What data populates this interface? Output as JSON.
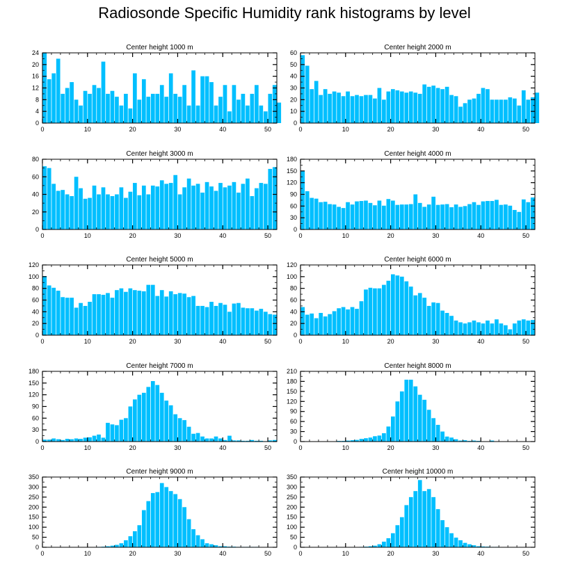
{
  "title": "Radiosonde Specific Humidity rank histograms by level",
  "bar_color": "#00BFFF",
  "chart_data": [
    {
      "type": "bar",
      "title": "Center height 1000 m",
      "xlim": [
        0,
        52
      ],
      "ylim": [
        0,
        24
      ],
      "xticks": [
        0,
        10,
        20,
        30,
        40,
        50
      ],
      "yticks": [
        0,
        4,
        8,
        12,
        16,
        20,
        24
      ],
      "values": [
        24,
        15,
        17,
        22,
        10,
        12,
        14,
        8,
        6,
        11,
        10,
        13,
        12,
        21,
        10,
        11,
        9,
        6,
        10,
        5,
        17,
        8,
        15,
        9,
        10,
        10,
        13,
        9,
        17,
        10,
        9,
        13,
        6,
        18,
        6,
        16,
        16,
        14,
        6,
        9,
        13,
        4,
        13,
        8,
        10,
        6,
        10,
        13,
        6,
        4,
        10,
        13,
        7
      ]
    },
    {
      "type": "bar",
      "title": "Center height 2000 m",
      "xlim": [
        0,
        52
      ],
      "ylim": [
        0,
        60
      ],
      "xticks": [
        0,
        10,
        20,
        30,
        40,
        50
      ],
      "yticks": [
        0,
        10,
        20,
        30,
        40,
        50,
        60
      ],
      "values": [
        58,
        49,
        29,
        36,
        24,
        29,
        25,
        27,
        26,
        23,
        27,
        23,
        24,
        23,
        24,
        24,
        21,
        30,
        20,
        27,
        29,
        28,
        27,
        26,
        27,
        26,
        25,
        33,
        31,
        32,
        30,
        29,
        31,
        24,
        23,
        14,
        17,
        20,
        21,
        25,
        30,
        29,
        20,
        20,
        20,
        20,
        22,
        21,
        15,
        28,
        20,
        22,
        26
      ]
    },
    {
      "type": "bar",
      "title": "Center height 3000 m",
      "xlim": [
        0,
        52
      ],
      "ylim": [
        0,
        80
      ],
      "xticks": [
        0,
        10,
        20,
        30,
        40,
        50
      ],
      "yticks": [
        0,
        20,
        40,
        60,
        80
      ],
      "values": [
        72,
        70,
        52,
        44,
        45,
        40,
        38,
        60,
        47,
        35,
        36,
        50,
        40,
        48,
        40,
        38,
        40,
        48,
        36,
        43,
        53,
        39,
        50,
        40,
        50,
        49,
        56,
        52,
        53,
        62,
        40,
        48,
        58,
        50,
        52,
        42,
        54,
        49,
        44,
        53,
        48,
        50,
        54,
        42,
        52,
        58,
        38,
        47,
        53,
        52,
        69,
        71
      ]
    },
    {
      "type": "bar",
      "title": "Center height 4000 m",
      "xlim": [
        0,
        52
      ],
      "ylim": [
        0,
        180
      ],
      "xticks": [
        0,
        10,
        20,
        30,
        40,
        50
      ],
      "yticks": [
        0,
        30,
        60,
        90,
        120,
        150,
        180
      ],
      "values": [
        150,
        98,
        81,
        79,
        70,
        71,
        65,
        64,
        58,
        55,
        70,
        64,
        72,
        73,
        74,
        68,
        62,
        74,
        61,
        78,
        74,
        63,
        64,
        64,
        65,
        90,
        68,
        58,
        64,
        84,
        63,
        64,
        65,
        57,
        64,
        58,
        60,
        65,
        70,
        63,
        72,
        73,
        73,
        76,
        63,
        64,
        61,
        50,
        45,
        77,
        70,
        82
      ]
    },
    {
      "type": "bar",
      "title": "Center height 5000 m",
      "xlim": [
        0,
        52
      ],
      "ylim": [
        0,
        120
      ],
      "xticks": [
        0,
        10,
        20,
        30,
        40,
        50
      ],
      "yticks": [
        0,
        20,
        40,
        60,
        80,
        100,
        120
      ],
      "values": [
        101,
        85,
        81,
        76,
        65,
        64,
        64,
        47,
        55,
        50,
        57,
        70,
        70,
        69,
        72,
        64,
        77,
        80,
        74,
        80,
        77,
        76,
        75,
        86,
        86,
        67,
        77,
        66,
        75,
        70,
        72,
        71,
        65,
        67,
        50,
        50,
        48,
        57,
        50,
        55,
        52,
        40,
        54,
        55,
        47,
        46,
        46,
        42,
        45,
        40,
        36,
        35
      ]
    },
    {
      "type": "bar",
      "title": "Center height 6000 m",
      "xlim": [
        0,
        52
      ],
      "ylim": [
        0,
        120
      ],
      "xticks": [
        0,
        10,
        20,
        30,
        40,
        50
      ],
      "yticks": [
        0,
        20,
        40,
        60,
        80,
        100,
        120
      ],
      "values": [
        48,
        35,
        37,
        29,
        38,
        32,
        36,
        41,
        46,
        48,
        44,
        48,
        45,
        58,
        78,
        81,
        80,
        80,
        86,
        93,
        104,
        102,
        100,
        92,
        83,
        68,
        72,
        64,
        50,
        56,
        55,
        42,
        38,
        33,
        25,
        22,
        20,
        22,
        25,
        22,
        20,
        25,
        20,
        27,
        20,
        17,
        10,
        20,
        25,
        27,
        25,
        26
      ]
    },
    {
      "type": "bar",
      "title": "Center height 7000 m",
      "xlim": [
        0,
        52
      ],
      "ylim": [
        0,
        180
      ],
      "xticks": [
        0,
        10,
        20,
        30,
        40,
        50
      ],
      "yticks": [
        0,
        30,
        60,
        90,
        120,
        150,
        180
      ],
      "values": [
        5,
        5,
        8,
        6,
        4,
        7,
        6,
        8,
        7,
        10,
        11,
        15,
        18,
        10,
        48,
        44,
        42,
        56,
        60,
        90,
        108,
        120,
        125,
        140,
        155,
        145,
        125,
        105,
        93,
        70,
        60,
        55,
        38,
        20,
        22,
        13,
        8,
        8,
        13,
        8,
        4,
        15,
        3,
        3,
        2,
        2,
        4,
        2,
        2,
        1,
        3,
        4
      ]
    },
    {
      "type": "bar",
      "title": "Center height 8000 m",
      "xlim": [
        0,
        52
      ],
      "ylim": [
        0,
        210
      ],
      "xticks": [
        0,
        10,
        20,
        30,
        40,
        50
      ],
      "yticks": [
        0,
        30,
        60,
        90,
        120,
        150,
        180,
        210
      ],
      "values": [
        0,
        0,
        1,
        1,
        1,
        0,
        1,
        1,
        2,
        2,
        3,
        4,
        5,
        8,
        10,
        12,
        16,
        18,
        25,
        45,
        75,
        120,
        150,
        185,
        185,
        165,
        140,
        125,
        95,
        70,
        50,
        30,
        15,
        12,
        7,
        3,
        4,
        2,
        3,
        2,
        1,
        1,
        3,
        1,
        0,
        0,
        0,
        0,
        0,
        0,
        0,
        0
      ]
    },
    {
      "type": "bar",
      "title": "Center height 9000 m",
      "xlim": [
        0,
        52
      ],
      "ylim": [
        0,
        350
      ],
      "xticks": [
        0,
        10,
        20,
        30,
        40,
        50
      ],
      "yticks": [
        0,
        50,
        100,
        150,
        200,
        250,
        300,
        350
      ],
      "values": [
        0,
        0,
        0,
        0,
        0,
        0,
        0,
        0,
        0,
        0,
        1,
        1,
        2,
        3,
        5,
        8,
        12,
        20,
        35,
        55,
        80,
        110,
        185,
        230,
        270,
        275,
        320,
        300,
        280,
        265,
        240,
        200,
        140,
        90,
        60,
        40,
        20,
        15,
        10,
        5,
        5,
        3,
        3,
        2,
        2,
        2,
        2,
        2,
        0,
        0,
        0,
        0
      ]
    },
    {
      "type": "bar",
      "title": "Center height 10000 m",
      "xlim": [
        0,
        52
      ],
      "ylim": [
        0,
        350
      ],
      "xticks": [
        0,
        10,
        20,
        30,
        40,
        50
      ],
      "yticks": [
        0,
        50,
        100,
        150,
        200,
        250,
        300,
        350
      ],
      "values": [
        0,
        0,
        0,
        0,
        0,
        0,
        0,
        0,
        0,
        0,
        1,
        1,
        1,
        2,
        3,
        5,
        8,
        15,
        28,
        45,
        70,
        110,
        150,
        210,
        250,
        280,
        335,
        280,
        290,
        250,
        190,
        135,
        100,
        70,
        48,
        35,
        22,
        15,
        10,
        5,
        4,
        3,
        2,
        2,
        1,
        1,
        1,
        1,
        1,
        0,
        0,
        0
      ]
    }
  ]
}
